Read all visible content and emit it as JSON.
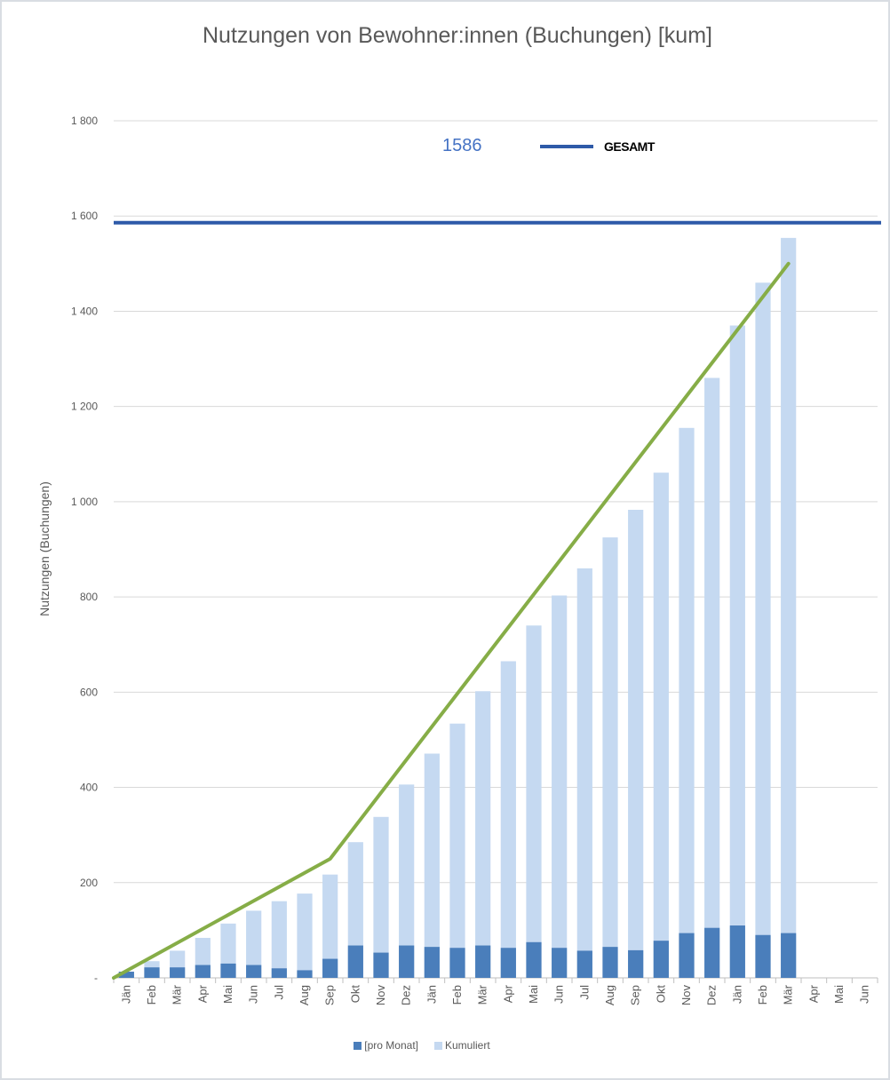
{
  "chart_data": {
    "type": "bar",
    "title": "Nutzungen von Bewohner:innen (Buchungen)  [kum]",
    "ylabel": "Nutzungen (Buchungen)",
    "xlabel": "",
    "ylim": [
      0,
      1800
    ],
    "yticks": [
      {
        "value": 0,
        "label": "-"
      },
      {
        "value": 200,
        "label": "200"
      },
      {
        "value": 400,
        "label": "400"
      },
      {
        "value": 600,
        "label": "600"
      },
      {
        "value": 800,
        "label": "800"
      },
      {
        "value": 1000,
        "label": "1 000"
      },
      {
        "value": 1200,
        "label": "1 200"
      },
      {
        "value": 1400,
        "label": "1 400"
      },
      {
        "value": 1600,
        "label": "1 600"
      },
      {
        "value": 1800,
        "label": "1 800"
      }
    ],
    "categories": [
      "Jän",
      "Feb",
      "Mär",
      "Apr",
      "Mai",
      "Jun",
      "Jul",
      "Aug",
      "Sep",
      "Okt",
      "Nov",
      "Dez",
      "Jän",
      "Feb",
      "Mär",
      "Apr",
      "Mai",
      "Jun",
      "Jul",
      "Aug",
      "Sep",
      "Okt",
      "Nov",
      "Dez",
      "Jän",
      "Feb",
      "Mär",
      "Apr",
      "Mai",
      "Jun"
    ],
    "series": [
      {
        "name": "[pro Monat]",
        "color": "#4a7ebb",
        "values": [
          13,
          22,
          22,
          27,
          30,
          27,
          20,
          16,
          40,
          68,
          53,
          68,
          65,
          63,
          68,
          63,
          75,
          63,
          57,
          65,
          58,
          78,
          94,
          105,
          110,
          90,
          94,
          null,
          null,
          null
        ]
      },
      {
        "name": "Kumuliert",
        "color": "#c5d9f1",
        "values": [
          13,
          35,
          57,
          84,
          114,
          141,
          161,
          177,
          217,
          285,
          338,
          406,
          471,
          534,
          602,
          665,
          740,
          803,
          860,
          925,
          983,
          1061,
          1155,
          1260,
          1370,
          1460,
          1554,
          null,
          null,
          null
        ]
      }
    ],
    "total": {
      "name": "GESAMT",
      "value": 1586,
      "value_label": "1586",
      "color": "#2e5aa8"
    },
    "trend": {
      "color": "#86ad47",
      "points": [
        {
          "x_index": -0.5,
          "y": 0
        },
        {
          "x_index": 8,
          "y": 250
        },
        {
          "x_index": 26,
          "y": 1500
        }
      ]
    },
    "grid": true,
    "legend_position": "bottom"
  }
}
